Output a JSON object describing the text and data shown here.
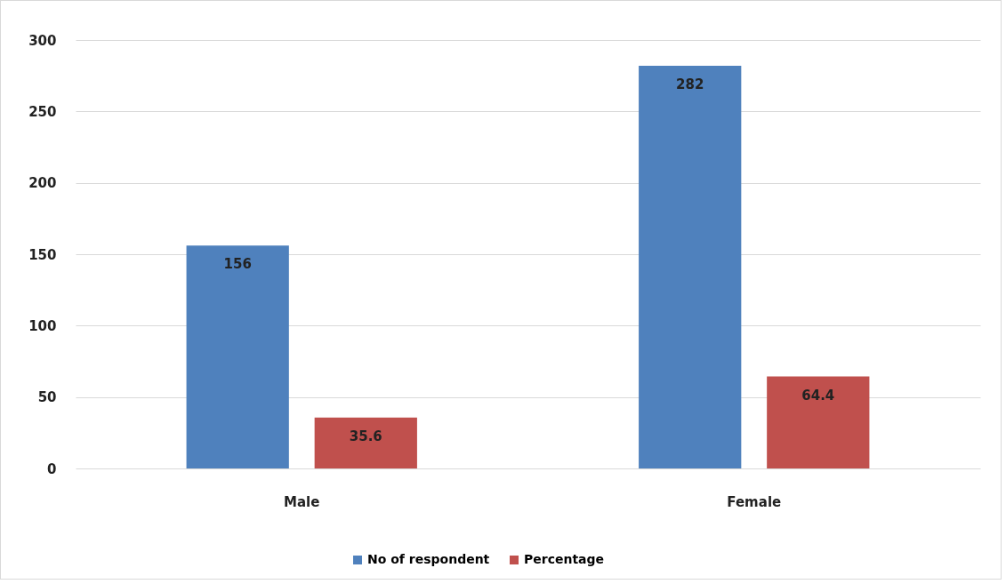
{
  "chart_data": {
    "type": "bar",
    "categories": [
      "Male",
      "Female"
    ],
    "series": [
      {
        "name": "No of respondent",
        "color": "#4f81bd",
        "values": [
          156,
          282
        ]
      },
      {
        "name": "Percentage",
        "color": "#c0504d",
        "values": [
          35.6,
          64.4
        ]
      }
    ],
    "ylim": [
      0,
      300
    ],
    "yticks": [
      0,
      50,
      100,
      150,
      200,
      250,
      300
    ],
    "grid": "y",
    "legend": "bottom",
    "data_labels": true
  }
}
